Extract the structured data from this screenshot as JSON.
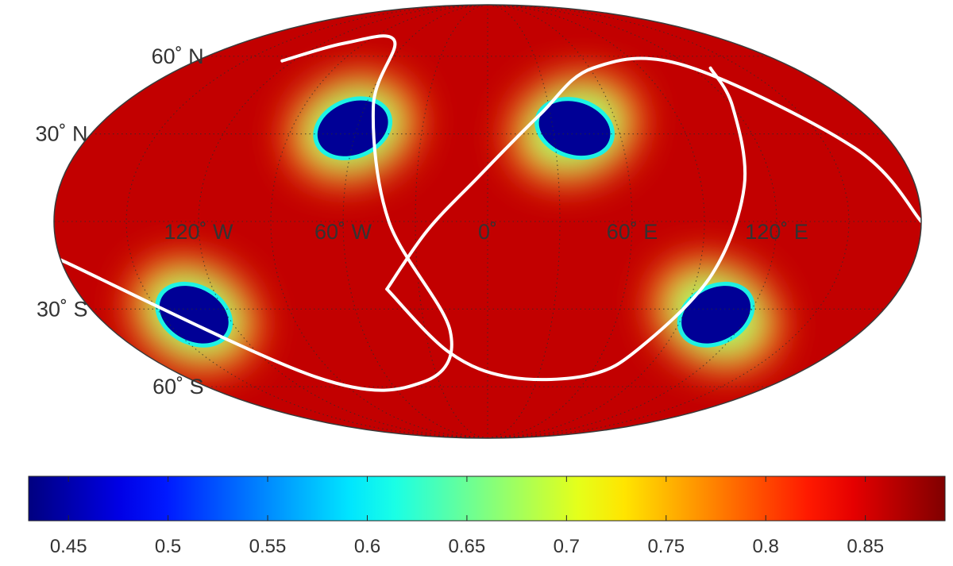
{
  "map": {
    "projection": "mollweide",
    "latitude_labels": [
      {
        "lat": 60,
        "text": "60˚ N"
      },
      {
        "lat": 30,
        "text": "30˚ N"
      },
      {
        "lat": -30,
        "text": "30˚ S"
      },
      {
        "lat": -60,
        "text": "60˚ S"
      }
    ],
    "longitude_labels": [
      {
        "lon": -120,
        "text": "120˚ W"
      },
      {
        "lon": -60,
        "text": "60˚ W"
      },
      {
        "lon": 0,
        "text": "0˚"
      },
      {
        "lon": 60,
        "text": "60˚ E"
      },
      {
        "lon": 120,
        "text": "120˚ E"
      }
    ],
    "graticule_lats": [
      -60,
      -30,
      0,
      30,
      60
    ],
    "graticule_lons": [
      -150,
      -120,
      -90,
      -60,
      -30,
      0,
      30,
      60,
      90,
      120,
      150
    ],
    "background_value": 0.86,
    "low_spots": [
      {
        "lon": -62,
        "lat": 32,
        "min_value": 0.44
      },
      {
        "lon": 40,
        "lat": 32,
        "min_value": 0.44
      },
      {
        "lon": -135,
        "lat": -32,
        "min_value": 0.44
      },
      {
        "lon": 105,
        "lat": -32,
        "min_value": 0.44
      }
    ],
    "white_curves": [
      [
        [
          -127,
          58
        ],
        [
          -104,
          66
        ],
        [
          -70,
          67
        ],
        [
          -56,
          40
        ],
        [
          -41,
          0
        ],
        [
          -18,
          -38
        ],
        [
          -40,
          -58
        ],
        [
          -102,
          -56
        ],
        [
          -180,
          -13
        ]
      ],
      [
        [
          -44,
          -23
        ],
        [
          -25,
          -3
        ],
        [
          -4,
          15
        ],
        [
          25,
          37
        ],
        [
          62,
          55
        ],
        [
          118,
          56
        ],
        [
          162,
          25
        ],
        [
          180,
          0
        ]
      ],
      [
        [
          131,
          55
        ],
        [
          120,
          40
        ],
        [
          108,
          12
        ],
        [
          96,
          -18
        ],
        [
          78,
          -44
        ],
        [
          60,
          -55
        ],
        [
          14,
          -56
        ],
        [
          -20,
          -46
        ],
        [
          -44,
          -23
        ]
      ]
    ],
    "curve_color": "#ffffff"
  },
  "colorbar": {
    "colormap": "jet",
    "min": 0.43,
    "max": 0.89,
    "ticks": [
      0.45,
      0.5,
      0.55,
      0.6,
      0.65,
      0.7,
      0.75,
      0.8,
      0.85
    ],
    "tick_labels": [
      "0.45",
      "0.5",
      "0.55",
      "0.6",
      "0.65",
      "0.7",
      "0.75",
      "0.8",
      "0.85"
    ]
  }
}
